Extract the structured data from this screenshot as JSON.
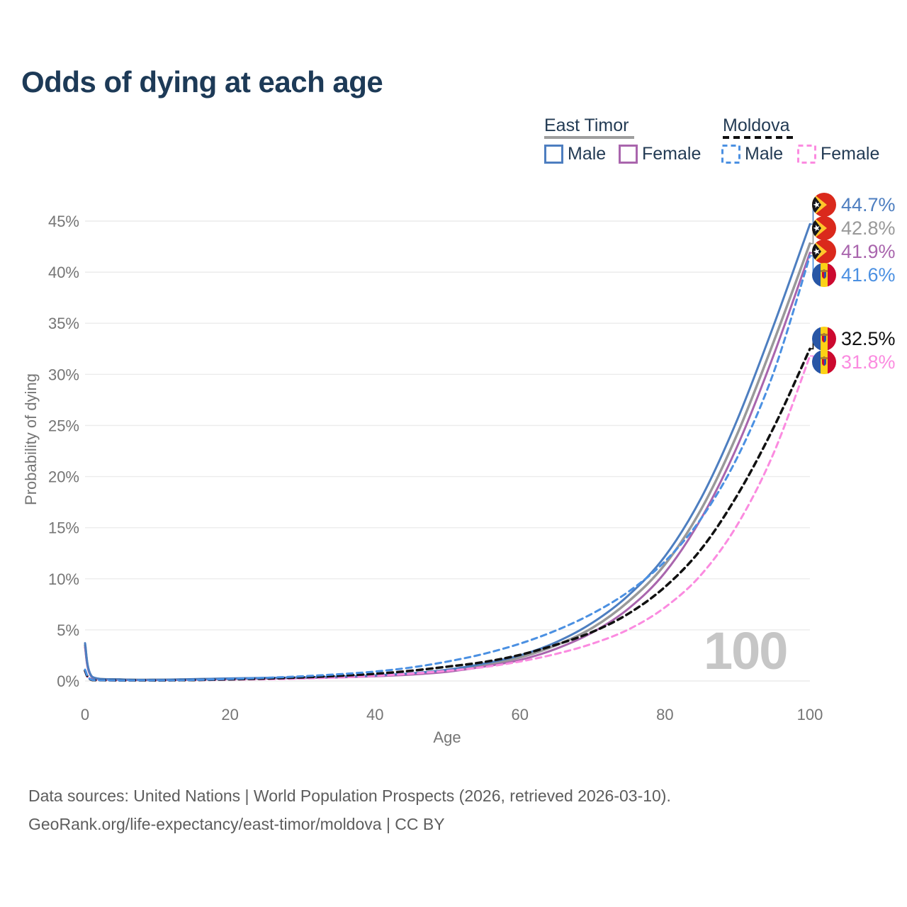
{
  "page": {
    "title": "Odds of dying at each age",
    "background": "#ffffff"
  },
  "legend": {
    "groups": [
      {
        "label": "East Timor",
        "line_style": "solid",
        "line_color": "#9e9e9e"
      },
      {
        "label": "Moldova",
        "line_style": "dashed",
        "line_color": "#111111"
      }
    ],
    "entries": [
      {
        "label": "Male",
        "country": "East Timor",
        "style": "solid",
        "color": "#4d7ec0"
      },
      {
        "label": "Female",
        "country": "East Timor",
        "style": "solid",
        "color": "#a965ad"
      },
      {
        "label": "Male",
        "country": "Moldova",
        "style": "dashed",
        "color": "#4b90e2"
      },
      {
        "label": "Female",
        "country": "Moldova",
        "style": "dashed",
        "color": "#fb8be0"
      }
    ]
  },
  "footer": {
    "line1": "Data sources: United Nations | World Population Prospects (2026, retrieved 2026-03-10).",
    "line2": "GeoRank.org/life-expectancy/east-timor/moldova | CC BY"
  },
  "chart_data": {
    "type": "line",
    "title": "Odds of dying at each age",
    "xlabel": "Age",
    "ylabel": "Probability of dying",
    "xlim": [
      0,
      100
    ],
    "ylim": [
      0,
      46
    ],
    "x_ticks": [
      0,
      20,
      40,
      60,
      80,
      100
    ],
    "y_ticks": [
      0,
      5,
      10,
      15,
      20,
      25,
      30,
      35,
      40,
      45
    ],
    "y_tick_suffix": "%",
    "grid": "horizontal",
    "legend_position": "top-right",
    "age_counter": "100",
    "ages": [
      0,
      1,
      5,
      10,
      15,
      20,
      25,
      30,
      35,
      40,
      45,
      50,
      55,
      60,
      65,
      70,
      75,
      80,
      85,
      90,
      95,
      100
    ],
    "series": [
      {
        "name": "East Timor Male",
        "country": "East Timor",
        "sex": "male",
        "style": "solid",
        "color": "#4d7ec0",
        "flag": "east-timor-flag-icon",
        "end_label": "44.7%",
        "values": [
          3.7,
          0.4,
          0.15,
          0.12,
          0.18,
          0.25,
          0.3,
          0.35,
          0.42,
          0.55,
          0.75,
          1.1,
          1.7,
          2.5,
          3.8,
          5.7,
          8.4,
          12.2,
          17.9,
          25.6,
          34.8,
          44.7
        ]
      },
      {
        "name": "East Timor",
        "country": "East Timor",
        "sex": "both",
        "style": "solid",
        "color": "#999999",
        "flag": "east-timor-flag-icon",
        "end_label": "42.8%",
        "values": [
          3.5,
          0.37,
          0.14,
          0.11,
          0.16,
          0.22,
          0.27,
          0.32,
          0.38,
          0.5,
          0.68,
          1.0,
          1.55,
          2.3,
          3.5,
          5.2,
          7.8,
          11.4,
          16.8,
          24.2,
          33.2,
          42.8
        ]
      },
      {
        "name": "East Timor Female",
        "country": "East Timor",
        "sex": "female",
        "style": "solid",
        "color": "#a965ad",
        "flag": "east-timor-flag-icon",
        "end_label": "41.9%",
        "values": [
          3.3,
          0.34,
          0.13,
          0.1,
          0.14,
          0.19,
          0.24,
          0.29,
          0.35,
          0.46,
          0.62,
          0.9,
          1.4,
          2.05,
          3.15,
          4.75,
          7.1,
          10.6,
          15.9,
          23.0,
          31.9,
          41.9
        ]
      },
      {
        "name": "Moldova Male",
        "country": "Moldova",
        "sex": "male",
        "style": "dashed",
        "color": "#4b90e2",
        "flag": "moldova-flag-icon",
        "end_label": "41.6%",
        "values": [
          1.1,
          0.1,
          0.05,
          0.06,
          0.1,
          0.2,
          0.31,
          0.46,
          0.66,
          0.92,
          1.32,
          1.9,
          2.65,
          3.65,
          4.95,
          6.6,
          8.75,
          11.7,
          15.9,
          21.9,
          30.2,
          41.6
        ]
      },
      {
        "name": "Moldova",
        "country": "Moldova",
        "sex": "both",
        "style": "dashed",
        "color": "#111111",
        "flag": "moldova-flag-icon",
        "end_label": "32.5%",
        "values": [
          1.0,
          0.09,
          0.05,
          0.05,
          0.09,
          0.16,
          0.24,
          0.35,
          0.5,
          0.7,
          1.0,
          1.4,
          1.85,
          2.55,
          3.55,
          4.8,
          6.6,
          9.2,
          12.9,
          18.2,
          24.8,
          32.5
        ]
      },
      {
        "name": "Moldova Female",
        "country": "Moldova",
        "sex": "female",
        "style": "dashed",
        "color": "#fb8be0",
        "flag": "moldova-flag-icon",
        "end_label": "31.8%",
        "values": [
          0.9,
          0.08,
          0.04,
          0.05,
          0.07,
          0.12,
          0.17,
          0.24,
          0.35,
          0.5,
          0.72,
          1.0,
          1.35,
          1.9,
          2.65,
          3.65,
          5.05,
          7.2,
          10.4,
          15.3,
          22.3,
          31.8
        ]
      }
    ]
  }
}
